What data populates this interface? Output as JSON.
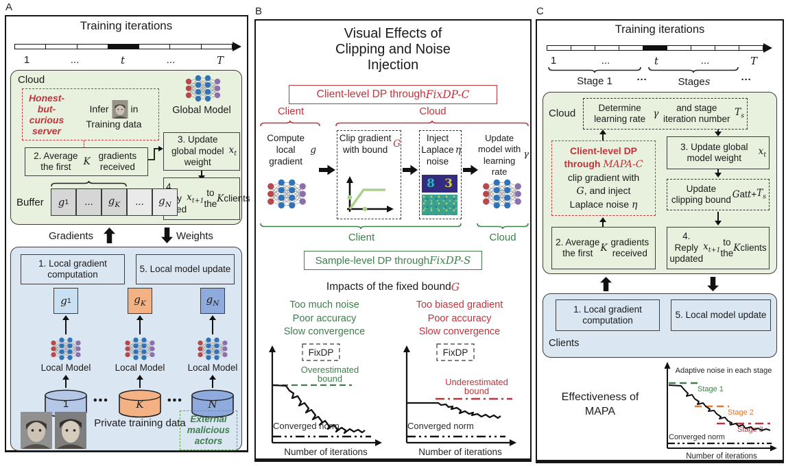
{
  "panelA": {
    "label": "A",
    "timeline": {
      "title": "Training iterations",
      "ticks_html": [
        "1",
        "...",
        "<i>t</i>",
        "...",
        "<i>T</i>"
      ]
    },
    "cloud": {
      "label": "Cloud",
      "attacker": "Honest-but-curious server",
      "infer_pre": "Infer",
      "infer_mid": "in",
      "infer_line2": "Training data",
      "global_model": "Global Model",
      "step3_html": "3. Update global model weight <i>x<sub>t</sub></i>",
      "step2_html": "2. Average the first <i>K</i> gradients received",
      "buffer_label": "Buffer",
      "buffer_cells_html": [
        "<i>g</i><sub>1</sub>",
        "...",
        "<i>g<sub>K</sub></i>",
        "...",
        "<i>g<sub>N</sub></i>"
      ],
      "step4_html": "4. Reply updated <i>x<sub>t+1</sub></i> to the <i>K</i> clients"
    },
    "flow": {
      "gradients": "Gradients",
      "weights": "Weights"
    },
    "clients": {
      "step1": "1. Local gradient computation",
      "step5": "5. Local model update",
      "g_html": [
        "<i>g</i><sub>1</sub>",
        "<i>g<sub>K</sub></i>",
        "<i>g<sub>N</sub></i>"
      ],
      "local_model": "Local Model",
      "cyl_html": [
        "1",
        "<i>K</i>",
        "<i>N</i>"
      ],
      "dots": "•••",
      "private_label": "Private training data",
      "malicious": "External malicious actors"
    }
  },
  "panelB": {
    "label": "B",
    "title_lines": [
      "Visual Effects of",
      "Clipping and Noise",
      "Injection"
    ],
    "client_dp_html": "Client-level DP through <i>FixDP-C</i>",
    "top_client": "Client",
    "top_cloud": "Cloud",
    "steps": {
      "compute_html": "Compute local gradient <i>g</i>",
      "clip_html": "Clip gradient with bound <em>G</em>",
      "inject_html": "Inject Laplace noise <i>η</i>",
      "update_html": "Update model with learning rate <i>γ</i>",
      "digit1": "8",
      "digit2": "3"
    },
    "bottom_client": "Client",
    "bottom_cloud": "Cloud",
    "sample_dp_html": "Sample-level DP through <i>FixDP-S</i>",
    "impacts_html": "Impacts of the fixed bound <em>G</em>",
    "left_effects": [
      "Too much noise",
      "Poor accuracy",
      "Slow convergence"
    ],
    "right_effects": [
      "Too biased gradient",
      "Poor accuracy",
      "Slow convergence"
    ],
    "chart_left": {
      "fixdp": "FixDP",
      "bound_l1": "Overestimated",
      "bound_l2": "bound",
      "converged": "Converged norm",
      "xlabel": "Number of iterations"
    },
    "chart_right": {
      "fixdp": "FixDP",
      "bound_l1": "Underestimated",
      "bound_l2": "bound",
      "converged": "Converged norm",
      "xlabel": "Number of iterations"
    }
  },
  "panelC": {
    "label": "C",
    "timeline": {
      "title": "Training iterations",
      "ticks_html": [
        "1",
        "...",
        "<i>t</i>",
        "...",
        "<i>T</i>"
      ],
      "stage1": "Stage 1",
      "stage_s_html": "Stage <i>s</i>",
      "dots1": "···",
      "dots2": "···"
    },
    "cloud": {
      "label": "Cloud",
      "determine_html": "Determine learning rate <i>γ</i> and stage iteration number <i>T<sub>s</sub></i>",
      "dp_red_html": "Client-level DP<br>through <i>MAPA-C</i>",
      "dp_black_html": "clip gradient with<br><i>G</i>, and inject<br>Laplace noise <i>η</i>",
      "step3_html": "3. Update global model weight <i>x<sub>t</sub></i>",
      "update_clip_html": "Update clipping bound <i>G</i> at <i>t</i> + <i>T<sub>s</sub></i>",
      "step2_html": "2. Average the first <i>K</i> gradients received",
      "step4_html": "4. Reply updated <i>x<sub>t+1</sub></i> to the <i>K</i> clients"
    },
    "clients": {
      "step1": "1. Local gradient computation",
      "step5": "5. Local model update",
      "label": "Clients"
    },
    "effectiveness": {
      "title_l1": "Effectiveness of",
      "title_l2": "MAPA",
      "annotation": "Adaptive noise in each stage",
      "stage1": "Stage 1",
      "stage2": "Stage 2",
      "stage3": "Stage 3",
      "converged": "Converged norm",
      "xlabel": "Number of iterations"
    }
  }
}
